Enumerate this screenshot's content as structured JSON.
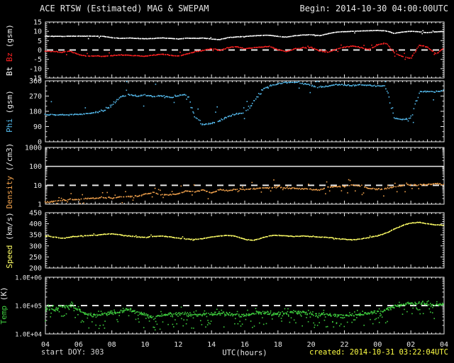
{
  "header": {
    "title": "ACE RTSW (Estimated) MAG & SWEPAM",
    "begin_label": "Begin: 2014-10-30 04:00:00UTC"
  },
  "footer": {
    "start_doy": "start DOY: 303",
    "created_label": "created: 2014-10-31 03:22:04UTC"
  },
  "colors": {
    "background": "#000000",
    "frame": "#e8e8e8",
    "bt": "#ffffff",
    "bz": "#ff2222",
    "phi": "#55bbee",
    "density": "#f2a24c",
    "speed": "#ffff66",
    "temp": "#3ecc3e",
    "created": "#ffff44"
  },
  "chart_data": {
    "type": "line",
    "title": "ACE RTSW (Estimated) MAG & SWEPAM",
    "x_axis": {
      "label": "UTC(hours)",
      "start_hour": 4,
      "end_hour": 28,
      "sample_step_hours": 0.5,
      "tick_interval_hours": 2,
      "tick_labels": [
        "04",
        "06",
        "08",
        "10",
        "12",
        "14",
        "16",
        "18",
        "20",
        "22",
        "00",
        "02",
        "04"
      ]
    },
    "panels": [
      {
        "name": "magnetic-field",
        "ylabel_parts": [
          {
            "text": "Bt ",
            "color_key": "bt"
          },
          {
            "text": "Bz ",
            "color_key": "bz"
          },
          {
            "text": "(gsm)",
            "color_key": "frame"
          }
        ],
        "scale": "linear",
        "ymin": -15,
        "ymax": 15,
        "ytick_step": 5,
        "yminor_step": 1,
        "ytick_labels": [
          "15",
          "10",
          "5",
          "0",
          "-5",
          "-10",
          "-15"
        ],
        "dashed_at": [
          0
        ],
        "solid_at": [],
        "series": [
          {
            "name": "Bt",
            "color_key": "bt",
            "values": [
              7.3,
              7.3,
              7.3,
              7.4,
              7.4,
              7.4,
              7.4,
              7.3,
              6.6,
              6.2,
              6.4,
              6.2,
              6.0,
              6.2,
              6.5,
              6.2,
              5.9,
              6.3,
              6.2,
              6.4,
              5.8,
              5.6,
              6.6,
              7.0,
              7.2,
              7.6,
              7.8,
              7.9,
              7.3,
              6.9,
              7.6,
              8.0,
              8.2,
              7.7,
              8.7,
              9.5,
              9.8,
              10.0,
              10.2,
              10.3,
              10.4,
              10.2,
              8.9,
              9.6,
              10.0,
              9.7,
              9.3,
              9.7,
              9.9
            ]
          },
          {
            "name": "Bz",
            "color_key": "bz",
            "values": [
              -0.5,
              -0.8,
              -1.2,
              -0.6,
              -2.5,
              -3.3,
              -3.2,
              -3.4,
              -3.0,
              -2.6,
              -2.8,
              -3.2,
              -3.4,
              -2.7,
              -2.2,
              -2.8,
              -3.3,
              -2.2,
              -1.0,
              -0.2,
              0.8,
              -0.3,
              1.2,
              1.8,
              0.6,
              1.2,
              1.6,
              1.9,
              0.2,
              -0.8,
              0.6,
              1.2,
              1.4,
              -0.6,
              -1.2,
              0.4,
              1.5,
              2.2,
              1.2,
              0.3,
              2.8,
              3.8,
              -1.5,
              -3.5,
              -4.5,
              2.5,
              1.5,
              -2.0,
              1.0
            ]
          }
        ]
      },
      {
        "name": "phi-angle",
        "ylabel_parts": [
          {
            "text": "Phi ",
            "color_key": "phi"
          },
          {
            "text": "(gsm)",
            "color_key": "frame"
          }
        ],
        "scale": "linear",
        "ymin": 0,
        "ymax": 360,
        "ytick_step": 90,
        "yminor_step": 30,
        "ytick_labels": [
          "360",
          "270",
          "180",
          "90",
          "0"
        ],
        "dashed_at": [],
        "solid_at": [],
        "series": [
          {
            "name": "Phi",
            "color_key": "phi",
            "values": [
              160,
              161,
              159,
              160,
              163,
              166,
              170,
              185,
              215,
              265,
              280,
              270,
              275,
              268,
              272,
              260,
              275,
              278,
              150,
              100,
              110,
              125,
              150,
              165,
              170,
              240,
              300,
              330,
              340,
              350,
              352,
              345,
              335,
              322,
              330,
              338,
              335,
              332,
              336,
              334,
              330,
              328,
              140,
              130,
              140,
              295,
              300,
              295,
              305
            ]
          }
        ]
      },
      {
        "name": "density",
        "ylabel_parts": [
          {
            "text": "Density ",
            "color_key": "density"
          },
          {
            "text": "(/cm3)",
            "color_key": "frame"
          }
        ],
        "scale": "log",
        "ymin": 1,
        "ymax": 1000,
        "ytick_labels": [
          "1000",
          "100",
          "10",
          "1"
        ],
        "dashed_at": [
          10
        ],
        "solid_at": [
          100
        ],
        "series": [
          {
            "name": "Density",
            "color_key": "density",
            "values": [
              1.3,
              1.4,
              1.6,
              1.8,
              1.8,
              2.0,
              2.1,
              2.2,
              2.2,
              2.4,
              2.5,
              2.6,
              3.5,
              4.0,
              3.0,
              3.2,
              3.5,
              5.0,
              4.5,
              5.5,
              4.0,
              6.0,
              5.0,
              6.5,
              6.0,
              6.5,
              7.0,
              7.5,
              8.0,
              7.0,
              7.0,
              6.5,
              6.0,
              5.5,
              8.0,
              8.5,
              9.0,
              10.0,
              9.0,
              7.0,
              6.0,
              7.0,
              8.0,
              10.0,
              11.0,
              10.0,
              11.0,
              12.0,
              11.0
            ]
          }
        ]
      },
      {
        "name": "speed",
        "ylabel_parts": [
          {
            "text": "Speed ",
            "color_key": "speed"
          },
          {
            "text": "(km/s)",
            "color_key": "frame"
          }
        ],
        "scale": "linear",
        "ymin": 200,
        "ymax": 450,
        "ytick_step": 50,
        "yminor_step": 10,
        "ytick_labels": [
          "450",
          "400",
          "350",
          "300",
          "250",
          "200"
        ],
        "dashed_at": [],
        "solid_at": [],
        "series": [
          {
            "name": "Speed",
            "color_key": "speed",
            "values": [
              345,
              340,
              334,
              340,
              344,
              346,
              348,
              352,
              354,
              350,
              345,
              341,
              338,
              342,
              345,
              340,
              335,
              331,
              329,
              333,
              340,
              345,
              348,
              342,
              330,
              324,
              335,
              345,
              348,
              345,
              343,
              345,
              342,
              340,
              338,
              334,
              330,
              327,
              331,
              338,
              345,
              358,
              375,
              392,
              403,
              407,
              400,
              396,
              392
            ]
          }
        ]
      },
      {
        "name": "temperature",
        "ylabel_parts": [
          {
            "text": "Temp ",
            "color_key": "temp"
          },
          {
            "text": "(K)",
            "color_key": "frame"
          }
        ],
        "scale": "log",
        "ymin": 10000,
        "ymax": 1000000,
        "ytick_labels": [
          "1.0E+06",
          "1.0E+05",
          "1.0E+04"
        ],
        "dashed_at": [
          100000
        ],
        "solid_at": [],
        "series": [
          {
            "name": "Temp",
            "color_key": "temp",
            "values": [
              85000,
              70000,
              90000,
              100000,
              70000,
              50000,
              45000,
              50000,
              55000,
              60000,
              75000,
              60000,
              45000,
              40000,
              45000,
              50000,
              55000,
              50000,
              45000,
              48000,
              50000,
              52000,
              50000,
              46000,
              44000,
              50000,
              55000,
              52000,
              50000,
              55000,
              60000,
              55000,
              50000,
              48000,
              50000,
              45000,
              42000,
              45000,
              50000,
              55000,
              60000,
              70000,
              90000,
              110000,
              120000,
              115000,
              110000,
              105000,
              110000
            ]
          }
        ]
      }
    ]
  }
}
